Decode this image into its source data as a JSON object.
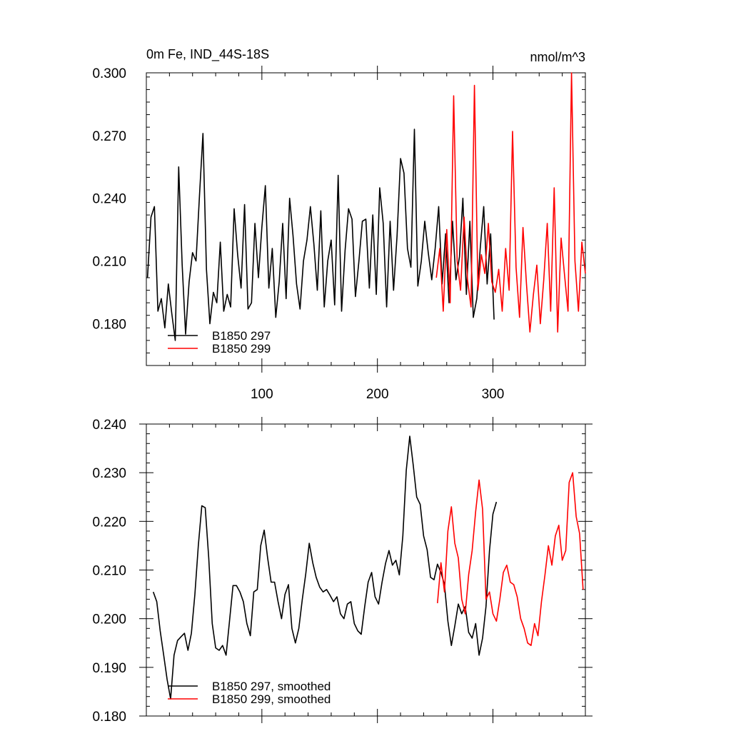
{
  "chart_data": [
    {
      "type": "line",
      "title_left": "0m Fe, IND_44S-18S",
      "title_right": "nmol/m^3",
      "xlim": [
        0,
        380
      ],
      "ylim": [
        0.16,
        0.3
      ],
      "x_ticks": [
        100,
        200,
        300
      ],
      "y_ticks": [
        0.18,
        0.21,
        0.24,
        0.27,
        0.3
      ],
      "y_tick_labels": [
        "0.180",
        "0.210",
        "0.240",
        "0.270",
        "0.300"
      ],
      "legend_placement": "bottom-left",
      "series": [
        {
          "name": "B1850 297",
          "color": "#000000",
          "x": [
            1,
            4,
            7,
            10,
            13,
            16,
            19,
            22,
            25,
            28,
            31,
            34,
            37,
            40,
            43,
            46,
            49,
            52,
            55,
            58,
            61,
            64,
            67,
            70,
            73,
            76,
            79,
            82,
            85,
            88,
            91,
            94,
            97,
            100,
            103,
            106,
            109,
            112,
            115,
            118,
            121,
            124,
            127,
            130,
            133,
            136,
            139,
            142,
            145,
            148,
            151,
            154,
            157,
            160,
            163,
            166,
            169,
            172,
            175,
            178,
            181,
            184,
            187,
            190,
            193,
            196,
            199,
            202,
            205,
            208,
            211,
            214,
            217,
            220,
            223,
            226,
            229,
            232,
            235,
            238,
            241,
            244,
            247,
            250,
            253,
            256,
            259,
            262,
            265,
            268,
            271,
            274,
            277,
            280,
            283,
            286,
            289,
            292,
            295,
            298,
            301
          ],
          "y": [
            0.202,
            0.231,
            0.236,
            0.186,
            0.192,
            0.178,
            0.199,
            0.185,
            0.172,
            0.255,
            0.208,
            0.175,
            0.2,
            0.214,
            0.21,
            0.241,
            0.271,
            0.206,
            0.18,
            0.195,
            0.19,
            0.219,
            0.186,
            0.194,
            0.188,
            0.235,
            0.213,
            0.197,
            0.237,
            0.187,
            0.19,
            0.228,
            0.202,
            0.226,
            0.246,
            0.197,
            0.216,
            0.183,
            0.2,
            0.228,
            0.192,
            0.24,
            0.222,
            0.199,
            0.187,
            0.21,
            0.22,
            0.236,
            0.218,
            0.196,
            0.234,
            0.188,
            0.21,
            0.22,
            0.189,
            0.251,
            0.186,
            0.215,
            0.235,
            0.23,
            0.193,
            0.21,
            0.229,
            0.23,
            0.197,
            0.232,
            0.194,
            0.245,
            0.228,
            0.188,
            0.229,
            0.196,
            0.222,
            0.259,
            0.252,
            0.216,
            0.207,
            0.273,
            0.198,
            0.21,
            0.229,
            0.214,
            0.201,
            0.216,
            0.236,
            0.199,
            0.223,
            0.19,
            0.229,
            0.201,
            0.212,
            0.24,
            0.194,
            0.229,
            0.183,
            0.192,
            0.216,
            0.236,
            0.199,
            0.223,
            0.182
          ]
        },
        {
          "name": "B1850 299",
          "color": "#ff0000",
          "x": [
            251,
            254,
            257,
            260,
            263,
            266,
            269,
            272,
            275,
            278,
            281,
            284,
            287,
            290,
            293,
            296,
            299,
            302,
            305,
            308,
            311,
            314,
            317,
            320,
            323,
            326,
            329,
            332,
            335,
            338,
            341,
            344,
            347,
            350,
            353,
            356,
            359,
            362,
            365,
            368,
            371,
            374,
            377,
            380
          ],
          "y": [
            0.202,
            0.216,
            0.186,
            0.225,
            0.19,
            0.289,
            0.21,
            0.196,
            0.231,
            0.201,
            0.188,
            0.294,
            0.196,
            0.213,
            0.204,
            0.228,
            0.2,
            0.195,
            0.206,
            0.186,
            0.216,
            0.196,
            0.272,
            0.207,
            0.183,
            0.226,
            0.199,
            0.176,
            0.194,
            0.208,
            0.18,
            0.201,
            0.228,
            0.186,
            0.245,
            0.176,
            0.221,
            0.203,
            0.186,
            0.3,
            0.21,
            0.186,
            0.219,
            0.204
          ]
        }
      ]
    },
    {
      "type": "line",
      "xlim": [
        0,
        380
      ],
      "ylim": [
        0.18,
        0.24
      ],
      "y_ticks": [
        0.18,
        0.19,
        0.2,
        0.21,
        0.22,
        0.23,
        0.24
      ],
      "y_tick_labels": [
        "0.180",
        "0.190",
        "0.200",
        "0.210",
        "0.220",
        "0.230",
        "0.240"
      ],
      "legend_placement": "bottom-left",
      "series": [
        {
          "name": "B1850 297, smoothed",
          "color": "#000000",
          "x": [
            6,
            9,
            12,
            15,
            18,
            21,
            24,
            27,
            30,
            33,
            36,
            39,
            42,
            45,
            48,
            51,
            54,
            57,
            60,
            63,
            66,
            69,
            72,
            75,
            78,
            81,
            84,
            87,
            90,
            93,
            96,
            99,
            102,
            105,
            108,
            111,
            114,
            117,
            120,
            123,
            126,
            129,
            132,
            135,
            138,
            141,
            144,
            147,
            150,
            153,
            156,
            159,
            162,
            165,
            168,
            171,
            174,
            177,
            180,
            183,
            186,
            189,
            192,
            195,
            198,
            201,
            204,
            207,
            210,
            213,
            216,
            219,
            222,
            225,
            228,
            231,
            234,
            237,
            240,
            243,
            246,
            249,
            252,
            255,
            258,
            261,
            264,
            267,
            270,
            273,
            276,
            279,
            282,
            285,
            288,
            291,
            294,
            297,
            300,
            303
          ],
          "y": [
            0.2055,
            0.2035,
            0.1975,
            0.1925,
            0.1875,
            0.1835,
            0.1925,
            0.1955,
            0.1963,
            0.197,
            0.1935,
            0.197,
            0.205,
            0.215,
            0.2232,
            0.2228,
            0.2125,
            0.199,
            0.194,
            0.1935,
            0.1945,
            0.1925,
            0.1995,
            0.2068,
            0.2068,
            0.2055,
            0.2035,
            0.199,
            0.1965,
            0.2055,
            0.206,
            0.215,
            0.2182,
            0.2125,
            0.2075,
            0.2075,
            0.2035,
            0.2,
            0.205,
            0.207,
            0.198,
            0.195,
            0.198,
            0.204,
            0.2092,
            0.2155,
            0.2115,
            0.2085,
            0.2065,
            0.2055,
            0.206,
            0.2048,
            0.2035,
            0.2045,
            0.201,
            0.2,
            0.203,
            0.2035,
            0.199,
            0.1975,
            0.1968,
            0.2025,
            0.2075,
            0.2095,
            0.2045,
            0.203,
            0.2075,
            0.2113,
            0.214,
            0.211,
            0.212,
            0.209,
            0.217,
            0.2305,
            0.2375,
            0.2315,
            0.225,
            0.2235,
            0.217,
            0.2142,
            0.2085,
            0.208,
            0.2112,
            0.2095,
            0.207,
            0.1995,
            0.1945,
            0.1985,
            0.203,
            0.201,
            0.2025,
            0.1972,
            0.196,
            0.199,
            0.1925,
            0.196,
            0.2025,
            0.214,
            0.2215,
            0.224
          ]
        },
        {
          "name": "B1850 299, smoothed",
          "color": "#ff0000",
          "x": [
            252,
            255,
            258,
            261,
            264,
            267,
            270,
            273,
            276,
            279,
            282,
            285,
            288,
            291,
            294,
            297,
            300,
            303,
            306,
            309,
            312,
            315,
            318,
            321,
            324,
            327,
            330,
            333,
            336,
            339,
            342,
            345,
            348,
            351,
            354,
            357,
            360,
            363,
            366,
            369,
            372,
            375,
            378
          ],
          "y": [
            0.2032,
            0.2115,
            0.2055,
            0.218,
            0.223,
            0.2155,
            0.2125,
            0.204,
            0.201,
            0.209,
            0.214,
            0.222,
            0.2285,
            0.2225,
            0.204,
            0.2055,
            0.201,
            0.1995,
            0.204,
            0.2095,
            0.211,
            0.2075,
            0.207,
            0.2045,
            0.2,
            0.198,
            0.195,
            0.1945,
            0.199,
            0.1965,
            0.2035,
            0.209,
            0.215,
            0.211,
            0.217,
            0.2192,
            0.212,
            0.214,
            0.228,
            0.23,
            0.221,
            0.2175,
            0.206
          ]
        }
      ]
    }
  ]
}
